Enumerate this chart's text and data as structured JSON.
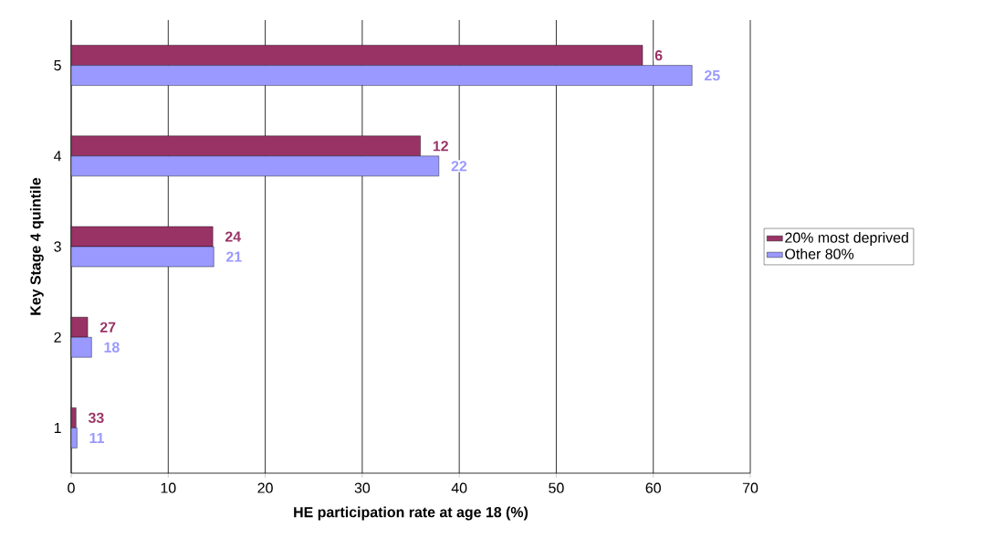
{
  "chart_data": {
    "type": "bar",
    "orientation": "horizontal",
    "xlabel": "HE participation rate at age 18 (%)",
    "ylabel": "Key Stage 4 quintile",
    "categories": [
      "5",
      "4",
      "3",
      "2",
      "1"
    ],
    "series": [
      {
        "name": "20% most deprived",
        "color": "#993366",
        "values": [
          58.9,
          36.0,
          14.6,
          1.7,
          0.5
        ]
      },
      {
        "name": "Other 80%",
        "color": "#9999ff",
        "values": [
          64.0,
          37.9,
          14.7,
          2.1,
          0.6
        ]
      }
    ],
    "annotations": [
      {
        "text": "6",
        "x": 58.9,
        "y": "5"
      },
      {
        "text": "25",
        "x": 64.0,
        "y": "5"
      },
      {
        "text": "12",
        "x": 36.0,
        "y": "4"
      },
      {
        "text": "22",
        "x": 37.9,
        "y": "4"
      },
      {
        "text": "24",
        "x": 14.6,
        "y": "3"
      },
      {
        "text": "21",
        "x": 14.7,
        "y": "3"
      },
      {
        "text": "27",
        "x": 1.7,
        "y": "2"
      },
      {
        "text": "18",
        "x": 2.1,
        "y": "2"
      },
      {
        "text": "33",
        "x": 0.5,
        "y": "1"
      },
      {
        "text": "11",
        "x": 0.6,
        "y": "1"
      }
    ],
    "xlim": [
      0,
      70
    ],
    "xticks": [
      0,
      10,
      20,
      30,
      40,
      50,
      60,
      70
    ],
    "grid": "x",
    "legend": "right"
  }
}
